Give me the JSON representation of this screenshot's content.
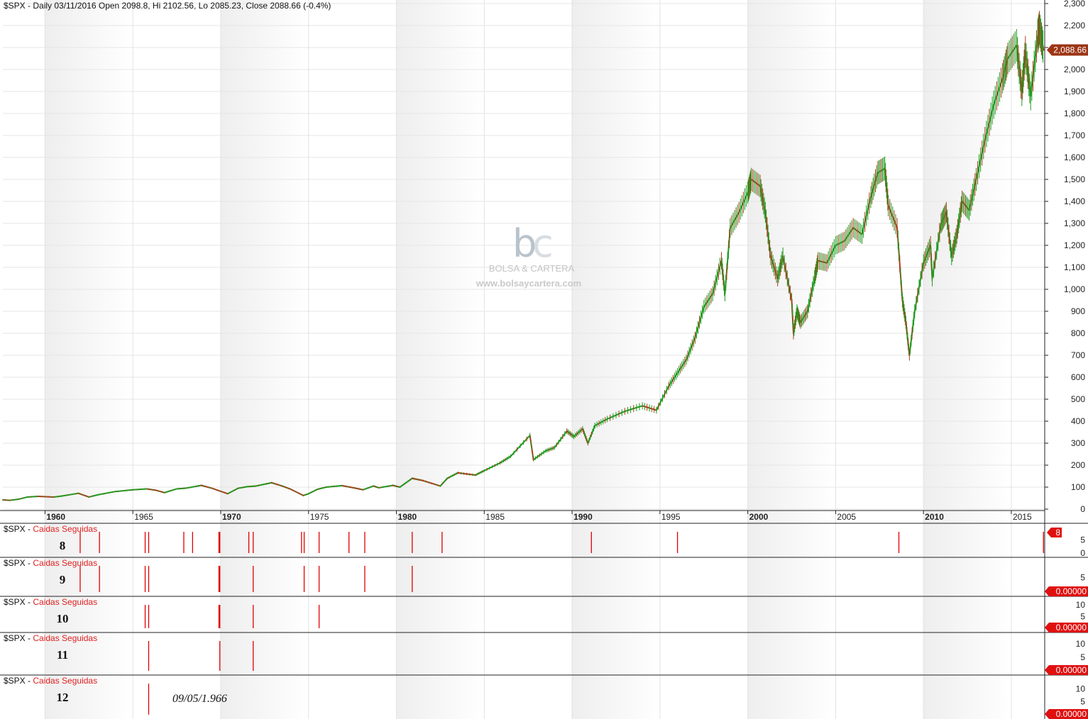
{
  "header": {
    "title": "$SPX - Daily 03/11/2016 Open 2098.8, Hi 2102.56, Lo 2085.23, Close 2088.66 (-0.4%)"
  },
  "watermark": {
    "name": "BOLSA & CARTERA",
    "url": "www.bolsaycartera.com"
  },
  "colors": {
    "up": "#1f9a1f",
    "down": "#b03a1a",
    "signal": "#e00000",
    "price_tag": "#9c3515",
    "shade": "#eeeeee"
  },
  "chart_data": [
    {
      "type": "line",
      "name": "price",
      "title": "$SPX - Daily 03/11/2016 Open 2098.8, Hi 2102.56, Lo 2085.23, Close 2088.66 (-0.4%)",
      "x_range": [
        1957.6,
        2016.9
      ],
      "ylim": [
        0,
        2300
      ],
      "y_ticks": [
        0,
        100,
        200,
        300,
        400,
        500,
        600,
        700,
        800,
        900,
        1000,
        1100,
        1200,
        1300,
        1400,
        1500,
        1600,
        1700,
        1800,
        1900,
        2000,
        2100,
        2200,
        2300
      ],
      "y_tick_labels": [
        "0",
        "100",
        "200",
        "300",
        "400",
        "500",
        "600",
        "700",
        "800",
        "900",
        "1,000",
        "1,100",
        "1,200",
        "1,300",
        "1,400",
        "1,500",
        "1,600",
        "1,700",
        "1,800",
        "1,900",
        "2,000",
        "2,100",
        "2,200",
        "2,300"
      ],
      "x_ticks": [
        1960,
        1965,
        1970,
        1975,
        1980,
        1985,
        1990,
        1995,
        2000,
        2005,
        2010,
        2015
      ],
      "x_tick_labels": [
        "1960",
        "1965",
        "1970",
        "1975",
        "1980",
        "1985",
        "1990",
        "1995",
        "2000",
        "2005",
        "2010",
        "2015"
      ],
      "x_bold_ticks": [
        1960,
        1970,
        1980,
        1990,
        2000,
        2010
      ],
      "last_value_label": "2,088.66",
      "points": [
        [
          1957.6,
          42
        ],
        [
          1958.0,
          40
        ],
        [
          1958.5,
          45
        ],
        [
          1959.0,
          55
        ],
        [
          1959.6,
          58
        ],
        [
          1960.5,
          55
        ],
        [
          1961.0,
          60
        ],
        [
          1961.9,
          72
        ],
        [
          1962.5,
          55
        ],
        [
          1963.0,
          65
        ],
        [
          1964.0,
          80
        ],
        [
          1965.0,
          88
        ],
        [
          1965.8,
          92
        ],
        [
          1966.3,
          86
        ],
        [
          1966.8,
          75
        ],
        [
          1967.5,
          92
        ],
        [
          1968.0,
          95
        ],
        [
          1968.9,
          108
        ],
        [
          1969.5,
          95
        ],
        [
          1970.4,
          70
        ],
        [
          1971.0,
          95
        ],
        [
          1971.5,
          102
        ],
        [
          1972.0,
          105
        ],
        [
          1972.9,
          120
        ],
        [
          1973.5,
          105
        ],
        [
          1974.0,
          90
        ],
        [
          1974.7,
          62
        ],
        [
          1975.0,
          70
        ],
        [
          1975.5,
          90
        ],
        [
          1976.0,
          100
        ],
        [
          1976.9,
          107
        ],
        [
          1977.5,
          98
        ],
        [
          1978.1,
          88
        ],
        [
          1978.7,
          105
        ],
        [
          1979.0,
          97
        ],
        [
          1979.8,
          108
        ],
        [
          1980.2,
          100
        ],
        [
          1980.9,
          140
        ],
        [
          1981.5,
          130
        ],
        [
          1982.5,
          105
        ],
        [
          1982.9,
          140
        ],
        [
          1983.5,
          165
        ],
        [
          1984.5,
          155
        ],
        [
          1985.0,
          175
        ],
        [
          1985.9,
          210
        ],
        [
          1986.5,
          240
        ],
        [
          1987.6,
          335
        ],
        [
          1987.8,
          225
        ],
        [
          1988.5,
          265
        ],
        [
          1989.0,
          280
        ],
        [
          1989.7,
          355
        ],
        [
          1990.1,
          330
        ],
        [
          1990.6,
          365
        ],
        [
          1990.9,
          300
        ],
        [
          1991.3,
          380
        ],
        [
          1992.0,
          410
        ],
        [
          1993.0,
          445
        ],
        [
          1994.0,
          470
        ],
        [
          1994.8,
          450
        ],
        [
          1995.5,
          560
        ],
        [
          1996.0,
          620
        ],
        [
          1996.5,
          680
        ],
        [
          1997.0,
          780
        ],
        [
          1997.5,
          920
        ],
        [
          1998.0,
          980
        ],
        [
          1998.5,
          1130
        ],
        [
          1998.7,
          980
        ],
        [
          1999.0,
          1280
        ],
        [
          1999.5,
          1350
        ],
        [
          2000.0,
          1440
        ],
        [
          2000.2,
          1500
        ],
        [
          2000.7,
          1470
        ],
        [
          2001.0,
          1350
        ],
        [
          2001.3,
          1150
        ],
        [
          2001.7,
          1050
        ],
        [
          2002.0,
          1150
        ],
        [
          2002.5,
          950
        ],
        [
          2002.6,
          800
        ],
        [
          2002.8,
          900
        ],
        [
          2003.0,
          850
        ],
        [
          2003.4,
          900
        ],
        [
          2003.8,
          1050
        ],
        [
          2004.0,
          1130
        ],
        [
          2004.5,
          1120
        ],
        [
          2005.0,
          1200
        ],
        [
          2005.5,
          1220
        ],
        [
          2006.0,
          1280
        ],
        [
          2006.5,
          1250
        ],
        [
          2007.0,
          1420
        ],
        [
          2007.4,
          1530
        ],
        [
          2007.8,
          1550
        ],
        [
          2008.0,
          1380
        ],
        [
          2008.5,
          1280
        ],
        [
          2008.8,
          950
        ],
        [
          2009.0,
          850
        ],
        [
          2009.2,
          700
        ],
        [
          2009.5,
          900
        ],
        [
          2010.0,
          1120
        ],
        [
          2010.4,
          1200
        ],
        [
          2010.5,
          1050
        ],
        [
          2011.0,
          1300
        ],
        [
          2011.3,
          1350
        ],
        [
          2011.6,
          1150
        ],
        [
          2011.9,
          1250
        ],
        [
          2012.2,
          1400
        ],
        [
          2012.6,
          1360
        ],
        [
          2013.0,
          1500
        ],
        [
          2013.5,
          1680
        ],
        [
          2014.0,
          1840
        ],
        [
          2014.5,
          1960
        ],
        [
          2014.8,
          2050
        ],
        [
          2015.3,
          2110
        ],
        [
          2015.6,
          1900
        ],
        [
          2015.8,
          2080
        ],
        [
          2016.1,
          1880
        ],
        [
          2016.5,
          2150
        ],
        [
          2016.6,
          2190
        ],
        [
          2016.84,
          2088.66
        ]
      ]
    },
    {
      "type": "bar",
      "title": "$SPX - Caidas Seguidas",
      "label": "8",
      "ylim": [
        0,
        8
      ],
      "y_ticks": [
        0,
        5
      ],
      "last_value_label": "8",
      "events": [
        1962.0,
        1963.1,
        1965.7,
        1965.9,
        1967.9,
        1968.4,
        1969.9,
        1969.95,
        1971.6,
        1971.85,
        1974.6,
        1974.75,
        1975.6,
        1977.3,
        1978.2,
        1980.9,
        1982.6,
        1991.1,
        1996.0,
        2008.6,
        2016.83
      ]
    },
    {
      "type": "bar",
      "title": "$SPX - Caidas Seguidas",
      "label": "9",
      "ylim": [
        0,
        9
      ],
      "y_ticks": [
        5
      ],
      "last_value_label": "0.00000",
      "events": [
        1962.0,
        1963.1,
        1965.7,
        1965.9,
        1969.9,
        1969.95,
        1971.85,
        1974.75,
        1975.6,
        1978.2,
        1980.9
      ]
    },
    {
      "type": "bar",
      "title": "$SPX - Caidas Seguidas",
      "label": "10",
      "ylim": [
        0,
        10
      ],
      "y_ticks": [
        5,
        10
      ],
      "last_value_label": "0.00000",
      "events": [
        1965.7,
        1965.9,
        1969.9,
        1969.95,
        1971.85,
        1975.6
      ]
    },
    {
      "type": "bar",
      "title": "$SPX - Caidas Seguidas",
      "label": "11",
      "ylim": [
        0,
        11
      ],
      "y_ticks": [
        5,
        10
      ],
      "last_value_label": "0.00000",
      "events": [
        1965.9,
        1969.95,
        1971.85
      ]
    },
    {
      "type": "bar",
      "title": "$SPX - Caidas Seguidas",
      "label": "12",
      "ylim": [
        0,
        12
      ],
      "y_ticks": [
        5,
        10
      ],
      "last_value_label": "0.00000",
      "annotation": "09/05/1.966",
      "events": [
        1965.9
      ]
    }
  ],
  "panel_title_prefix": "$SPX - ",
  "panel_title_name": "Caidas Seguidas"
}
